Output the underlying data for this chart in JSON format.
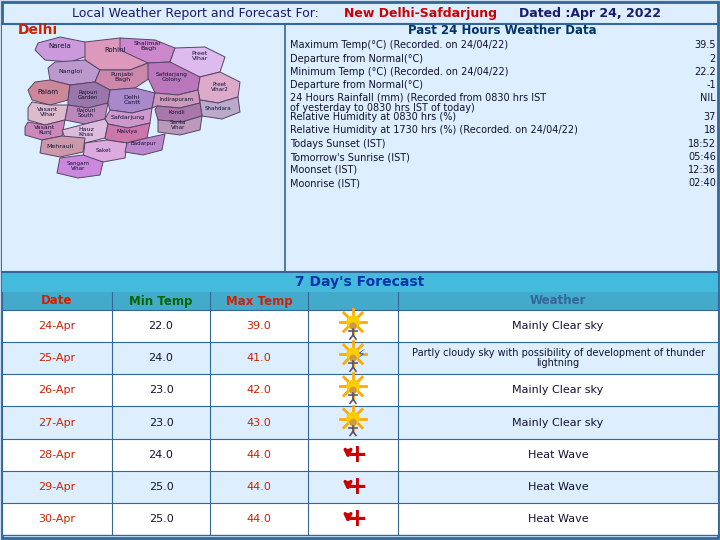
{
  "title_part1": "Local Weather Report and Forecast For:",
  "title_part2": "New Delhi-Safdarjung",
  "title_part3": "Dated :Apr 24, 2022",
  "map_label": "Delhi",
  "past24_title": "Past 24 Hours Weather Data",
  "past24_rows": [
    [
      "Maximum Temp(°C) (Recorded. on 24/04/22)",
      "39.5"
    ],
    [
      "Departure from Normal(°C)",
      "2"
    ],
    [
      "Minimum Temp (°C) (Recorded. on 24/04/22)",
      "22.2"
    ],
    [
      "Departure from Normal(°C)",
      "-1"
    ],
    [
      "24 Hours Rainfall (mm) (Recorded from 0830 hrs IST\nof yesterday to 0830 hrs IST of today)",
      "NIL"
    ],
    [
      "Relative Humidity at 0830 hrs (%)",
      "37"
    ],
    [
      "Relative Humidity at 1730 hrs (%) (Recorded. on 24/04/22)",
      "18"
    ],
    [
      "Todays Sunset (IST)",
      "18:52"
    ],
    [
      "Tomorrow's Sunrise (IST)",
      "05:46"
    ],
    [
      "Moonset (IST)",
      "12:36"
    ],
    [
      "Moonrise (IST)",
      "02:40"
    ]
  ],
  "forecast_title": "7 Day's Forecast",
  "forecast_rows": [
    [
      "24-Apr",
      "22.0",
      "39.0",
      "sun",
      "Mainly Clear sky"
    ],
    [
      "25-Apr",
      "24.0",
      "41.0",
      "sun_cloud",
      "Partly cloudy sky with possibility of development of thunder\nlightning"
    ],
    [
      "26-Apr",
      "23.0",
      "42.0",
      "sun",
      "Mainly Clear sky"
    ],
    [
      "27-Apr",
      "23.0",
      "43.0",
      "sun",
      "Mainly Clear sky"
    ],
    [
      "28-Apr",
      "24.0",
      "44.0",
      "heat",
      "Heat Wave"
    ],
    [
      "29-Apr",
      "25.0",
      "44.0",
      "heat",
      "Heat Wave"
    ],
    [
      "30-Apr",
      "25.0",
      "44.0",
      "heat",
      "Heat Wave"
    ]
  ],
  "bg_outer": "#ccddef",
  "bg_inner": "#ddeeff",
  "border_color": "#336699",
  "map_bg": "#ddeeff",
  "weather_panel_bg": "#ffffff",
  "forecast_header_bg": "#44bbdd",
  "forecast_title_color": "#0033aa",
  "table_header_bg": "#44aacc",
  "table_row_bg_odd": "#ffffff",
  "table_row_bg_even": "#ddeeff",
  "date_color": "#cc2200",
  "min_temp_color": "#006600",
  "max_temp_color": "#cc2200",
  "weather_col_color": "#336699",
  "text_color": "#111133",
  "value_color": "#111133"
}
